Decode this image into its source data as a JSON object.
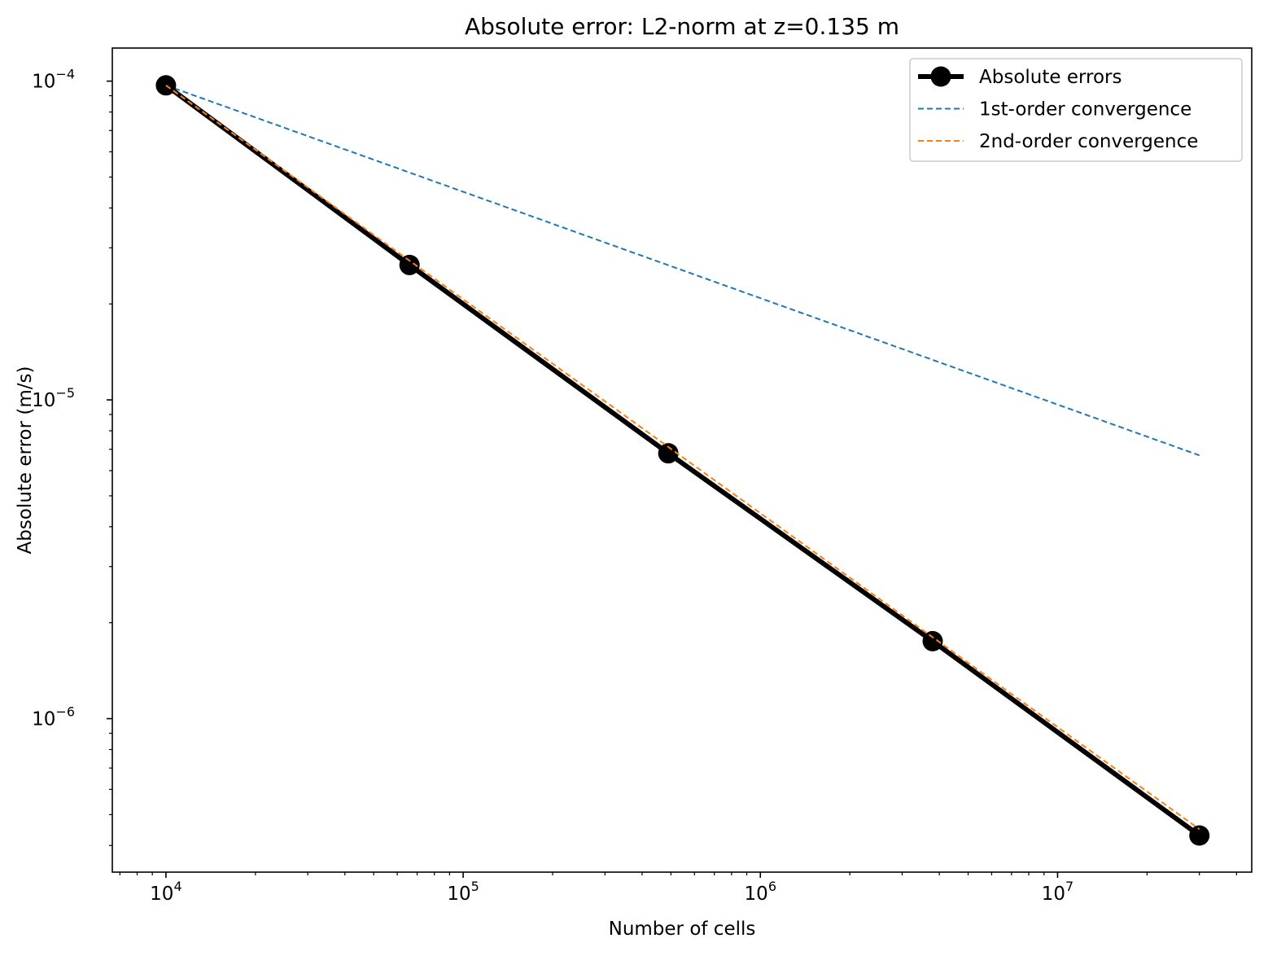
{
  "chart_data": {
    "type": "line",
    "title": "Absolute error: L2-norm at z=0.135 m",
    "xlabel": "Number of cells",
    "ylabel": "Absolute error (m/s)",
    "xscale": "log",
    "yscale": "log",
    "xlim": [
      6600,
      45000000
    ],
    "ylim": [
      3.3e-07,
      0.000127
    ],
    "xticks": [
      {
        "value": 10000,
        "base": "10",
        "exp": "4"
      },
      {
        "value": 100000,
        "base": "10",
        "exp": "5"
      },
      {
        "value": 1000000,
        "base": "10",
        "exp": "6"
      },
      {
        "value": 10000000,
        "base": "10",
        "exp": "7"
      }
    ],
    "yticks": [
      {
        "value": 0.0001,
        "base": "10",
        "exp": "−4"
      },
      {
        "value": 1e-05,
        "base": "10",
        "exp": "−5"
      },
      {
        "value": 1e-06,
        "base": "10",
        "exp": "−6"
      }
    ],
    "grid": false,
    "legend_position": "top-right",
    "series": [
      {
        "name": "Absolute errors",
        "color": "#000000",
        "style": "solid",
        "marker": "circle",
        "x": [
          10000,
          66000,
          490000,
          3800000,
          30000000
        ],
        "y": [
          9.7e-05,
          2.65e-05,
          6.8e-06,
          1.75e-06,
          4.3e-07
        ]
      },
      {
        "name": "1st-order convergence",
        "color": "#1f77b4",
        "style": "dashed",
        "marker": "none",
        "x": [
          10000,
          30000000
        ],
        "y": [
          9.7e-05,
          6.7e-06
        ]
      },
      {
        "name": "2nd-order convergence",
        "color": "#ff7f0e",
        "style": "dashed",
        "marker": "none",
        "x": [
          10000,
          30000000
        ],
        "y": [
          9.7e-05,
          4.5e-07
        ]
      }
    ]
  }
}
